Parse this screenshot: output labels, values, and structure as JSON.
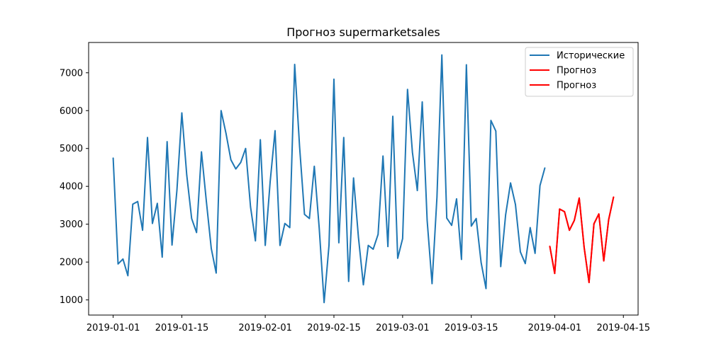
{
  "chart_data": {
    "type": "line",
    "title": "Прогноз supermarketsales",
    "xlabel": "",
    "ylabel": "",
    "x_tick_labels": [
      "2019-01-01",
      "2019-01-15",
      "2019-02-01",
      "2019-02-15",
      "2019-03-01",
      "2019-03-15",
      "2019-04-01",
      "2019-04-15"
    ],
    "y_ticks": [
      1000,
      2000,
      3000,
      4000,
      5000,
      6000,
      7000
    ],
    "xlim": [
      "2018-12-27",
      "2019-04-18"
    ],
    "ylim": [
      600,
      7800
    ],
    "grid": false,
    "legend_position": "top-right",
    "series": [
      {
        "name": "Исторические",
        "color": "#1f77b4",
        "start_date": "2019-01-01",
        "values": [
          4750,
          1950,
          2080,
          1640,
          3530,
          3600,
          2840,
          5290,
          3020,
          3550,
          2130,
          5180,
          2450,
          3900,
          5940,
          4300,
          3150,
          2780,
          4910,
          3600,
          2360,
          1710,
          6000,
          5400,
          4700,
          4460,
          4630,
          5000,
          3460,
          2560,
          5230,
          2440,
          4120,
          5470,
          2440,
          3020,
          2910,
          7220,
          5050,
          3260,
          3150,
          4530,
          2900,
          930,
          2450,
          6830,
          2510,
          5290,
          1490,
          4220,
          2650,
          1400,
          2440,
          2340,
          2730,
          4800,
          2410,
          5850,
          2100,
          2620,
          6560,
          4900,
          3890,
          6230,
          3100,
          1430,
          3710,
          7470,
          3160,
          2970,
          3670,
          2070,
          7210,
          2950,
          3150,
          1990,
          1300,
          5740,
          5460,
          1880,
          3250,
          4090,
          3520,
          2270,
          1960,
          2910,
          2230,
          4020,
          4490
        ]
      },
      {
        "name": "Прогноз",
        "color": "#ff0000",
        "start_date": "2019-03-31",
        "values": [
          2420,
          1700,
          3400,
          3330,
          2840,
          3100,
          3690,
          2390,
          1460,
          3010,
          3270,
          2030,
          3120,
          3720
        ]
      },
      {
        "name": "Прогноз",
        "color": "#ff0000",
        "start_date": "2019-03-31",
        "values": [
          2420,
          1700,
          3400,
          3330,
          2840,
          3100,
          3690,
          2390,
          1460,
          3010,
          3270,
          2030,
          3120,
          3720
        ]
      }
    ]
  }
}
